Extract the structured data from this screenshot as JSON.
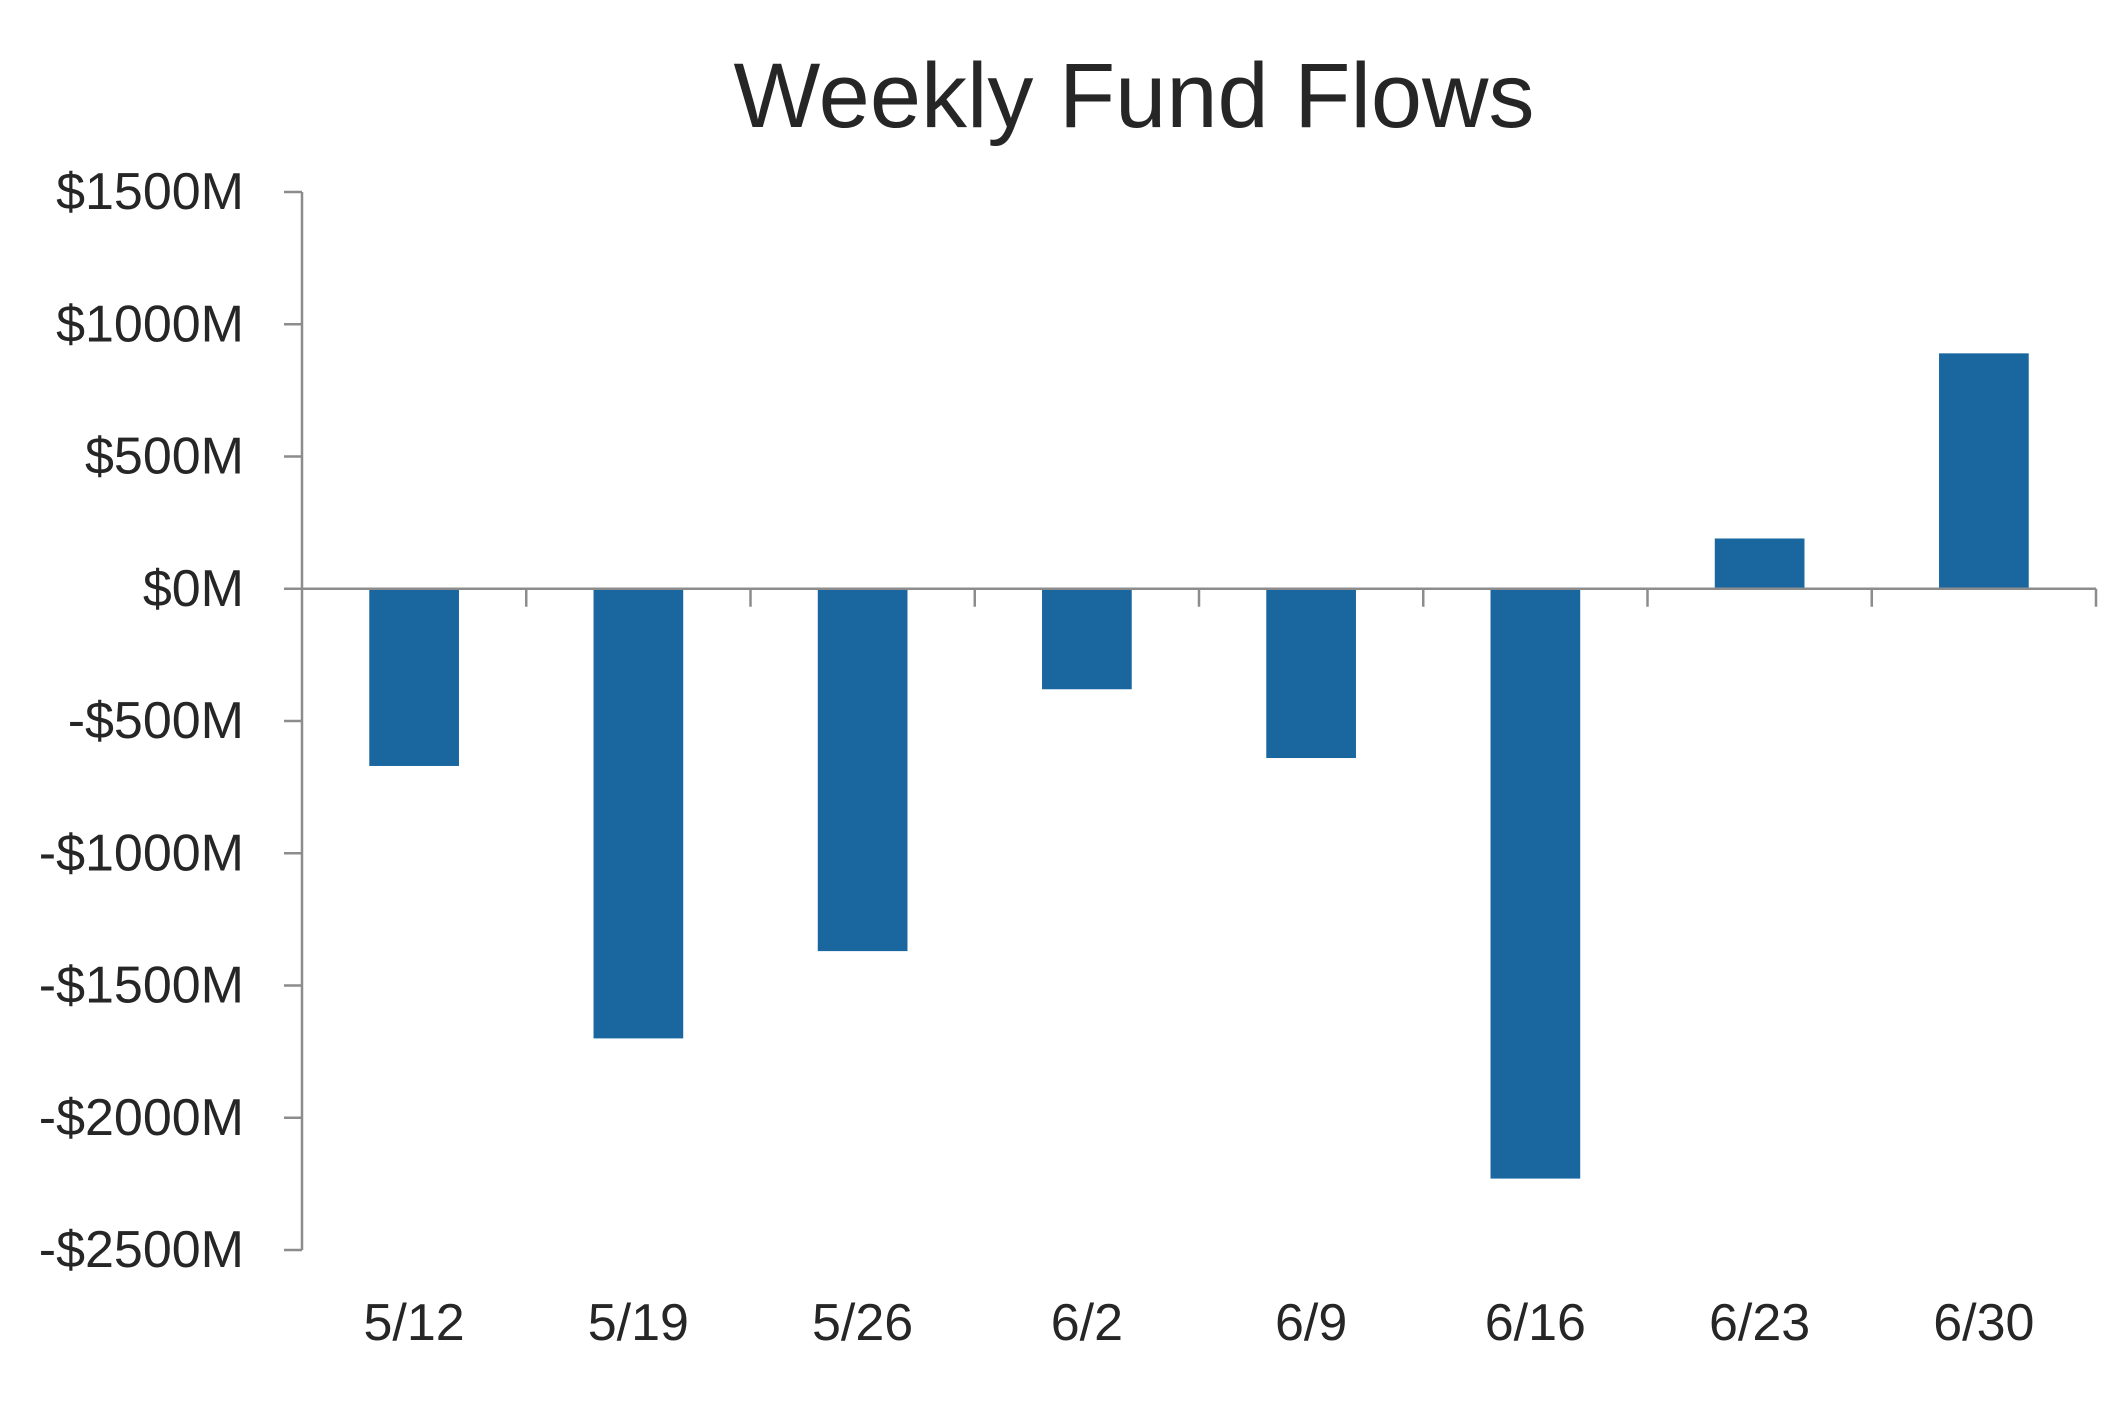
{
  "chart_data": {
    "type": "bar",
    "title": "Weekly Fund Flows",
    "xlabel": "",
    "ylabel": "",
    "categories": [
      "5/12",
      "5/19",
      "5/26",
      "6/2",
      "6/9",
      "6/16",
      "6/23",
      "6/30"
    ],
    "values": [
      -670,
      -1700,
      -1370,
      -380,
      -640,
      -2230,
      190,
      890
    ],
    "ylim": [
      -2500,
      1500
    ],
    "yticks": [
      1500,
      1000,
      500,
      0,
      -500,
      -1000,
      -1500,
      -2000,
      -2500
    ],
    "ytick_labels": [
      "$1500M",
      "$1000M",
      "$500M",
      "$0M",
      "-$500M",
      "-$1000M",
      "-$1500M",
      "-$2000M",
      "-$2500M"
    ],
    "legend": "none",
    "grid": false,
    "bar_color": "#1a67a0",
    "axis_color": "#8c8c8c"
  }
}
